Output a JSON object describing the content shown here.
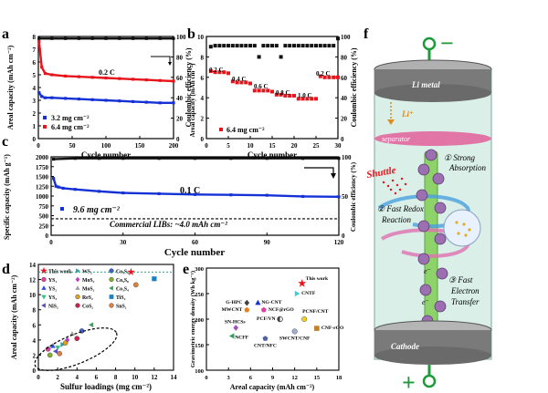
{
  "colors": {
    "red": "#e8141c",
    "blue": "#1431d6",
    "black": "#111111",
    "green": "#1f9a3a",
    "pink": "#e2609a",
    "glass": "#d9efe8",
    "electrode": "#8a8a8a",
    "particle": "#9b6fb0",
    "axis": "#000000"
  },
  "panels": {
    "a": {
      "letter": "a"
    },
    "b": {
      "letter": "b"
    },
    "c": {
      "letter": "c"
    },
    "d": {
      "letter": "d"
    },
    "e": {
      "letter": "e"
    },
    "f": {
      "letter": "f"
    }
  },
  "chart_data": [
    {
      "id": "a",
      "type": "scatter",
      "xlabel": "Cycle number",
      "ylabel": "Areal capacity (mAh cm⁻²)",
      "y2label": "Coulombic efficiency (%)",
      "xlim": [
        0,
        200
      ],
      "ylim": [
        0,
        8
      ],
      "y2lim": [
        0,
        100
      ],
      "xticks": [
        "0",
        "50",
        "100",
        "150",
        "200"
      ],
      "yticks": [
        "0",
        "1",
        "2",
        "3",
        "4",
        "5",
        "6",
        "7",
        "8"
      ],
      "y2ticks": [
        "0",
        "20",
        "40",
        "60",
        "80",
        "100"
      ],
      "rate_label": "0.2 C",
      "legend": [
        "3.2 mg cm⁻²",
        "6.4 mg cm⁻²"
      ],
      "series": [
        {
          "name": "6.4 mg cm⁻²",
          "color": "red",
          "x": [
            1,
            5,
            10,
            20,
            40,
            60,
            80,
            100,
            120,
            140,
            160,
            180,
            200
          ],
          "y": [
            7.6,
            5.6,
            5.1,
            5.0,
            4.9,
            4.85,
            4.8,
            4.75,
            4.7,
            4.65,
            4.6,
            4.55,
            4.5
          ]
        },
        {
          "name": "3.2 mg cm⁻²",
          "color": "blue",
          "x": [
            1,
            5,
            10,
            20,
            40,
            60,
            80,
            100,
            120,
            140,
            160,
            180,
            200
          ],
          "y": [
            3.6,
            3.3,
            3.2,
            3.2,
            3.15,
            3.1,
            3.05,
            3.0,
            2.95,
            2.9,
            2.85,
            2.8,
            2.8
          ]
        },
        {
          "name": "CE",
          "color": "black",
          "x": [
            1,
            20,
            40,
            60,
            80,
            100,
            120,
            140,
            160,
            180,
            200
          ],
          "y": [
            98,
            98,
            98,
            98,
            98,
            98,
            98,
            98,
            98,
            98,
            98
          ]
        }
      ]
    },
    {
      "id": "b",
      "type": "scatter",
      "xlabel": "Cycle number",
      "ylabel": "Areal capacity (mAh cm⁻²)",
      "y2label": "Coulombic efficiency (%)",
      "xlim": [
        0,
        30
      ],
      "ylim": [
        0,
        10
      ],
      "y2lim": [
        0,
        100
      ],
      "xticks": [
        "0",
        "5",
        "10",
        "15",
        "20",
        "25",
        "30"
      ],
      "yticks": [
        "0",
        "2",
        "4",
        "6",
        "8",
        "10"
      ],
      "y2ticks": [
        "0",
        "20",
        "40",
        "60",
        "80",
        "100"
      ],
      "rate_labels": [
        "0.2 C",
        "0.4 C",
        "0.6 C",
        "0.8 C",
        "1.0 C",
        "0.2 C"
      ],
      "legend": [
        "6.4 mg cm⁻²"
      ],
      "series": [
        {
          "name": "capacity",
          "color": "red",
          "x": [
            1,
            2,
            3,
            4,
            5,
            6,
            7,
            8,
            9,
            10,
            11,
            12,
            13,
            14,
            15,
            16,
            17,
            18,
            19,
            20,
            21,
            22,
            23,
            24,
            25,
            26,
            27,
            28,
            29,
            30
          ],
          "y": [
            6.6,
            6.5,
            6.5,
            6.5,
            6.4,
            5.6,
            5.5,
            5.5,
            5.5,
            5.4,
            4.7,
            4.7,
            4.7,
            4.7,
            4.6,
            4.3,
            4.3,
            4.2,
            4.2,
            4.2,
            3.9,
            3.9,
            3.9,
            3.9,
            3.9,
            6.1,
            6.0,
            6.0,
            6.0,
            6.0
          ]
        },
        {
          "name": "CE",
          "color": "black",
          "x": [
            1,
            2,
            3,
            4,
            5,
            6,
            7,
            8,
            9,
            10,
            11,
            12,
            13,
            14,
            15,
            16,
            17,
            18,
            19,
            20,
            21,
            22,
            23,
            24,
            25,
            26,
            27,
            28,
            29,
            30
          ],
          "y": [
            90,
            91,
            91,
            91,
            91,
            91,
            91,
            91,
            91,
            91,
            91,
            80,
            91,
            91,
            91,
            91,
            80,
            91,
            91,
            91,
            91,
            91,
            91,
            91,
            91,
            91,
            91,
            91,
            91,
            98
          ]
        }
      ]
    },
    {
      "id": "c",
      "type": "scatter",
      "xlabel": "Cycle number",
      "ylabel": "Specific capacity (mAh g⁻¹)",
      "y2label": "Coulombic efficiency (%)",
      "xlim": [
        0,
        120
      ],
      "ylim": [
        0,
        2000
      ],
      "y2lim": [
        0,
        100
      ],
      "xticks": [
        "0",
        "30",
        "60",
        "90",
        "120"
      ],
      "yticks": [
        "0",
        "250",
        "500",
        "750",
        "1000",
        "1250",
        "1500",
        "1750",
        "2000"
      ],
      "y2ticks": [
        "0",
        "50",
        "100"
      ],
      "rate_label": "0.1 C",
      "legend": [
        "9.6 mg cm⁻²"
      ],
      "annotation": "Commercial LIBs: ~4.0  mAh cm⁻²",
      "reference_line": 420,
      "series": [
        {
          "name": "capacity",
          "color": "blue",
          "x": [
            1,
            2,
            3,
            5,
            10,
            20,
            30,
            45,
            60,
            75,
            90,
            105,
            120
          ],
          "y": [
            1450,
            1250,
            1230,
            1200,
            1170,
            1120,
            1080,
            1060,
            1040,
            1030,
            1020,
            990,
            980
          ]
        },
        {
          "name": "CE",
          "color": "black",
          "x": [
            1,
            10,
            20,
            30,
            45,
            60,
            75,
            90,
            105,
            120
          ],
          "y": [
            97,
            98,
            98,
            98,
            98,
            98,
            98,
            98,
            98,
            98
          ]
        }
      ]
    },
    {
      "id": "d",
      "type": "scatter",
      "xlabel": "Sulfur loadings (mg cm⁻²)",
      "ylabel": "Areal capacity (mAh cm⁻²)",
      "xlim": [
        0,
        14
      ],
      "ylim": [
        0,
        14
      ],
      "xticks": [
        "0",
        "2",
        "4",
        "6",
        "8",
        "10",
        "12",
        "14"
      ],
      "yticks": [
        "0",
        "2",
        "4",
        "6",
        "8",
        "10",
        "12",
        "14"
      ],
      "reference_line": 13,
      "legend": [
        {
          "label": "This work",
          "marker": "star",
          "color": "#e8141c"
        },
        {
          "label": "YS₁",
          "marker": "circle",
          "color": "#e040a0"
        },
        {
          "label": "YS₂",
          "marker": "triangle",
          "color": "#3050e0"
        },
        {
          "label": "YS₃",
          "marker": "triangle-down",
          "color": "#30c080"
        },
        {
          "label": "NiS₂",
          "marker": "triangle-left",
          "color": "#5050c0"
        },
        {
          "label": "WS₂",
          "marker": "triangle-right",
          "color": "#30a0a0"
        },
        {
          "label": "MoS₂",
          "marker": "diamond",
          "color": "#c040c0"
        },
        {
          "label": "MoS₂",
          "marker": "triangle",
          "color": "#a0a0a0"
        },
        {
          "label": "ReS₂",
          "marker": "circle",
          "color": "#e0a020"
        },
        {
          "label": "CoS₂",
          "marker": "circle",
          "color": "#d02050"
        },
        {
          "label": "Co₃S₄",
          "marker": "circle",
          "color": "#4060d0"
        },
        {
          "label": "Co₉S₈",
          "marker": "circle",
          "color": "#80b030"
        },
        {
          "label": "Co₃S₄",
          "marker": "triangle-left",
          "color": "#40a060"
        },
        {
          "label": "TiS₂",
          "marker": "square",
          "color": "#2080c0"
        },
        {
          "label": "SnS₂",
          "marker": "circle",
          "color": "#e08040"
        }
      ],
      "points": [
        {
          "x": 9.6,
          "y": 13.0,
          "marker": "star",
          "color": "#e8141c"
        },
        {
          "x": 12.0,
          "y": 12.1,
          "marker": "square",
          "color": "#2080c0"
        },
        {
          "x": 10.1,
          "y": 11.3,
          "marker": "circle",
          "color": "#e08040"
        },
        {
          "x": 1.0,
          "y": 2.8,
          "marker": "circle",
          "color": "#e040a0"
        },
        {
          "x": 1.5,
          "y": 3.2,
          "marker": "triangle",
          "color": "#3050e0"
        },
        {
          "x": 2.0,
          "y": 3.0,
          "marker": "triangle-down",
          "color": "#30c080"
        },
        {
          "x": 1.8,
          "y": 2.5,
          "marker": "triangle-left",
          "color": "#5050c0"
        },
        {
          "x": 2.5,
          "y": 3.4,
          "marker": "triangle-right",
          "color": "#30a0a0"
        },
        {
          "x": 3.0,
          "y": 4.0,
          "marker": "diamond",
          "color": "#c040c0"
        },
        {
          "x": 3.5,
          "y": 4.8,
          "marker": "triangle",
          "color": "#a0a0a0"
        },
        {
          "x": 2.8,
          "y": 3.6,
          "marker": "circle",
          "color": "#e0a020"
        },
        {
          "x": 4.0,
          "y": 4.2,
          "marker": "circle",
          "color": "#d02050"
        },
        {
          "x": 4.5,
          "y": 5.2,
          "marker": "circle",
          "color": "#4060d0"
        },
        {
          "x": 1.2,
          "y": 2.0,
          "marker": "circle",
          "color": "#80b030"
        },
        {
          "x": 5.5,
          "y": 6.0,
          "marker": "triangle-left",
          "color": "#40a060"
        },
        {
          "x": 2.2,
          "y": 2.2,
          "marker": "circle",
          "color": "#e08040"
        }
      ]
    },
    {
      "id": "e",
      "type": "scatter",
      "xlabel": "Areal capacity (mAh cm⁻²)",
      "ylabel": "Gravimetric energy density (Wh kg⁻¹)",
      "xlim": [
        0,
        18
      ],
      "ylim": [
        100,
        300
      ],
      "xticks": [
        "0",
        "3",
        "6",
        "9",
        "12",
        "15",
        "18"
      ],
      "yticks": [
        "100",
        "150",
        "200",
        "250",
        "300"
      ],
      "points": [
        {
          "label": "This work",
          "x": 13.0,
          "y": 270,
          "marker": "star",
          "color": "#e8141c"
        },
        {
          "label": "CNTF",
          "x": 12.3,
          "y": 250,
          "marker": "triangle-right",
          "color": "#40c8e0"
        },
        {
          "label": "G-HPC",
          "x": 5.5,
          "y": 232,
          "marker": "diamond",
          "color": "#404040"
        },
        {
          "label": "NG-CNT",
          "x": 7.0,
          "y": 232,
          "marker": "triangle",
          "color": "#1431d6"
        },
        {
          "label": "MWCNT",
          "x": 5.5,
          "y": 218,
          "marker": "pentagon",
          "color": "#e08020"
        },
        {
          "label": "NCF@rGO",
          "x": 7.8,
          "y": 218,
          "marker": "pentagon",
          "color": "#e040a0"
        },
        {
          "label": "PCF/VN",
          "x": 10.0,
          "y": 200,
          "marker": "half-circle",
          "color": "#404040"
        },
        {
          "label": "PCNF/CNT",
          "x": 13.3,
          "y": 200,
          "marker": "circle",
          "color": "#f0d020"
        },
        {
          "label": "SN-HCSs",
          "x": 4.0,
          "y": 183,
          "marker": "diamond",
          "color": "#a050c0"
        },
        {
          "label": "CNF-rGO",
          "x": 15.0,
          "y": 182,
          "marker": "square",
          "color": "#c08030"
        },
        {
          "label": "SWCNT/CNF",
          "x": 12.0,
          "y": 176,
          "marker": "circle",
          "color": "#a0b0d0"
        },
        {
          "label": "NCFF",
          "x": 3.5,
          "y": 167,
          "marker": "triangle-left",
          "color": "#30a060"
        },
        {
          "label": "CNT/NFC",
          "x": 8.0,
          "y": 162,
          "marker": "pentagon",
          "color": "#5060a0"
        }
      ]
    }
  ],
  "schematic": {
    "top_sign": "−",
    "bottom_sign": "+",
    "li_metal": "Li metal",
    "li_ion": "Li⁺",
    "separator": "separator",
    "shuttle": "Shuttle",
    "step1": "① Strong",
    "step1b": "Absorption",
    "step2": "② Fast Redox",
    "step2b": "Reaction",
    "step3": "③ Fast",
    "step3b": "Electron",
    "step3c": "Transfer",
    "electron1": "e⁻",
    "electron2": "e⁻",
    "cathode": "Cathode"
  }
}
